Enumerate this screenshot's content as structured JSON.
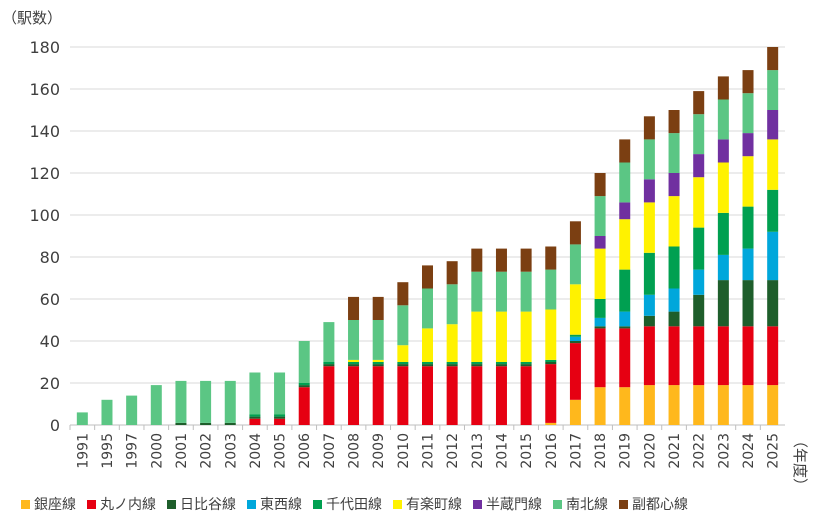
{
  "chart_data": {
    "type": "bar",
    "stacked": true,
    "title": "",
    "ylabel": "（駅数）",
    "xlabel": "（年度）",
    "ylim": [
      0,
      180
    ],
    "yticks": [
      0,
      20,
      40,
      60,
      80,
      100,
      120,
      140,
      160,
      180
    ],
    "grid": true,
    "legend_position": "bottom",
    "categories": [
      "1991",
      "1995",
      "1997",
      "2000",
      "2001",
      "2002",
      "2003",
      "2004",
      "2005",
      "2006",
      "2007",
      "2008",
      "2009",
      "2010",
      "2011",
      "2012",
      "2013",
      "2014",
      "2015",
      "2016",
      "2017",
      "2018",
      "2019",
      "2020",
      "2021",
      "2022",
      "2023",
      "2024",
      "2025"
    ],
    "series": [
      {
        "name": "銀座線",
        "color": "#FFB81C",
        "values": [
          0,
          0,
          0,
          0,
          0,
          0,
          0,
          0,
          0,
          0,
          0,
          0,
          0,
          0,
          0,
          0,
          0,
          0,
          0,
          1,
          12,
          18,
          18,
          19,
          19,
          19,
          19,
          19,
          19
        ]
      },
      {
        "name": "丸ノ内線",
        "color": "#E60012",
        "values": [
          0,
          0,
          0,
          0,
          0,
          0,
          0,
          3,
          3,
          18,
          28,
          28,
          28,
          28,
          28,
          28,
          28,
          28,
          28,
          28,
          27,
          28,
          28,
          28,
          28,
          28,
          28,
          28,
          28
        ]
      },
      {
        "name": "日比谷線",
        "color": "#1E5E2B",
        "values": [
          0,
          0,
          0,
          0,
          1,
          1,
          1,
          1,
          1,
          1,
          1,
          1,
          1,
          1,
          1,
          1,
          1,
          1,
          1,
          1,
          1,
          1,
          1,
          5,
          7,
          15,
          22,
          22,
          22
        ]
      },
      {
        "name": "東西線",
        "color": "#00A7DB",
        "values": [
          0,
          0,
          0,
          0,
          0,
          0,
          0,
          0,
          0,
          0,
          0,
          0,
          0,
          0,
          0,
          0,
          0,
          0,
          0,
          0,
          2,
          4,
          7,
          10,
          11,
          12,
          12,
          15,
          23
        ]
      },
      {
        "name": "千代田線",
        "color": "#00A051",
        "values": [
          0,
          0,
          0,
          0,
          0,
          0,
          0,
          1,
          1,
          1,
          1,
          1,
          1,
          1,
          1,
          1,
          1,
          1,
          1,
          1,
          1,
          9,
          20,
          20,
          20,
          20,
          20,
          20,
          20
        ]
      },
      {
        "name": "有楽町線",
        "color": "#FFF200",
        "values": [
          0,
          0,
          0,
          0,
          0,
          0,
          0,
          0,
          0,
          0,
          0,
          1,
          1,
          8,
          16,
          18,
          24,
          24,
          24,
          24,
          24,
          24,
          24,
          24,
          24,
          24,
          24,
          24,
          24
        ]
      },
      {
        "name": "半蔵門線",
        "color": "#7030A0",
        "values": [
          0,
          0,
          0,
          0,
          0,
          0,
          0,
          0,
          0,
          0,
          0,
          0,
          0,
          0,
          0,
          0,
          0,
          0,
          0,
          0,
          0,
          6,
          8,
          11,
          11,
          11,
          11,
          11,
          14
        ]
      },
      {
        "name": "南北線",
        "color": "#5BC684",
        "values": [
          6,
          12,
          14,
          19,
          20,
          20,
          20,
          20,
          20,
          20,
          19,
          19,
          19,
          19,
          19,
          19,
          19,
          19,
          19,
          19,
          19,
          19,
          19,
          19,
          19,
          19,
          19,
          19,
          19
        ]
      },
      {
        "name": "副都心線",
        "color": "#7B3F12",
        "values": [
          0,
          0,
          0,
          0,
          0,
          0,
          0,
          0,
          0,
          0,
          0,
          11,
          11,
          11,
          11,
          11,
          11,
          11,
          11,
          11,
          11,
          11,
          11,
          11,
          11,
          11,
          11,
          11,
          11
        ]
      }
    ]
  }
}
